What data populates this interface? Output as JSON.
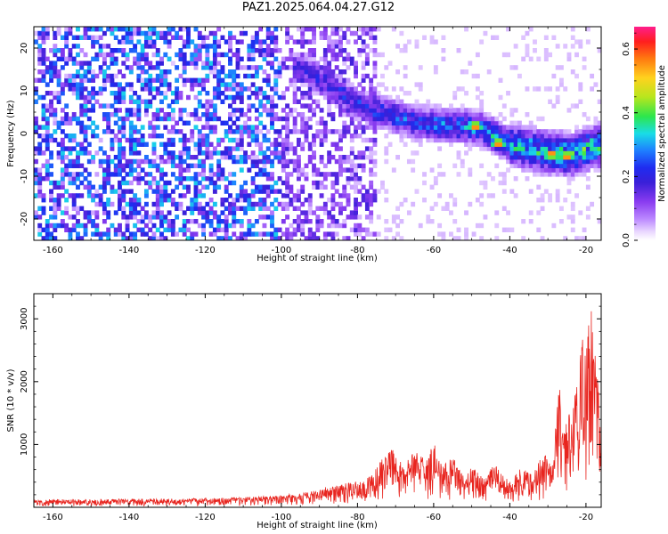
{
  "title": "PAZ1.2025.064.04.27.G12",
  "colors": {
    "snr_line": "#e8251f",
    "colormap": [
      "#ffffff",
      "#ead8ff",
      "#cc99ff",
      "#9c55f0",
      "#7b1fe0",
      "#3a1fd8",
      "#1f2cf0",
      "#1e7fff",
      "#19dde6",
      "#2de64c",
      "#b7e61e",
      "#ffd21e",
      "#ff7a10",
      "#ff1e1e",
      "#ff1e8c"
    ]
  },
  "chart_data": [
    {
      "type": "heatmap",
      "title": "PAZ1.2025.064.04.27.G12",
      "xlabel": "Height of straight line (km)",
      "ylabel": "Frequency (Hz)",
      "xlim": [
        -165,
        -16
      ],
      "ylim": [
        -25,
        25
      ],
      "x_ticks": [
        -160,
        -140,
        -120,
        -100,
        -80,
        -60,
        -40,
        -20
      ],
      "y_ticks": [
        -20,
        -10,
        0,
        10,
        20
      ],
      "colorbar": {
        "label": "Normalized spectral amplitude",
        "range": [
          0.0,
          0.67
        ],
        "ticks": [
          0.0,
          0.2,
          0.4,
          0.6
        ]
      },
      "signal_ridge": {
        "x": [
          -95,
          -88,
          -80,
          -72,
          -64,
          -56,
          -48,
          -40,
          -32,
          -24,
          -18
        ],
        "y": [
          15.5,
          12.0,
          7.0,
          4.5,
          2.5,
          2.0,
          1.5,
          -2.5,
          -4.0,
          -5.0,
          -3.0
        ]
      },
      "peak_amplitude": {
        "x": [
          -49,
          -43,
          -29,
          -25
        ],
        "y": [
          1.8,
          -2.2,
          -4.8,
          -5.2
        ]
      }
    },
    {
      "type": "line",
      "xlabel": "Height of straight line (km)",
      "ylabel": "SNR (10 * v/v)",
      "xlim": [
        -165,
        -16
      ],
      "ylim": [
        0,
        3400
      ],
      "x_ticks": [
        -160,
        -140,
        -120,
        -100,
        -80,
        -60,
        -40,
        -20
      ],
      "y_ticks": [
        1000,
        2000,
        3000
      ],
      "series": [
        {
          "x": [
            -165,
            -160,
            -150,
            -140,
            -130,
            -120,
            -110,
            -100,
            -95,
            -90,
            -85,
            -80,
            -76,
            -73,
            -71,
            -68,
            -65,
            -62,
            -60,
            -58,
            -55,
            -52,
            -50,
            -47,
            -44,
            -40,
            -37,
            -34,
            -31,
            -29,
            -27,
            -26,
            -24,
            -22,
            -21,
            -20,
            -19,
            -18,
            -17,
            -16
          ],
          "y": [
            120,
            130,
            125,
            135,
            140,
            145,
            160,
            190,
            230,
            310,
            360,
            420,
            520,
            880,
            1050,
            650,
            900,
            750,
            1050,
            700,
            800,
            520,
            650,
            480,
            700,
            420,
            630,
            520,
            900,
            700,
            1950,
            1200,
            1600,
            2100,
            2700,
            2500,
            3400,
            3100,
            2200,
            1100
          ]
        }
      ]
    }
  ]
}
